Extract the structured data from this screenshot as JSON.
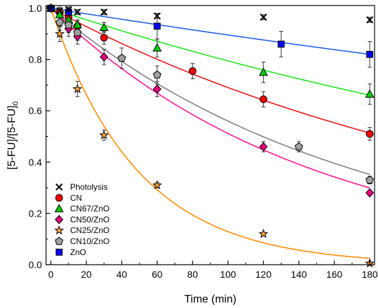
{
  "chart_data": {
    "type": "scatter",
    "xlabel": "Time (min)",
    "ylabel": {
      "main": "[5-FU]/[5-FU]",
      "sub": "0"
    },
    "xlim": [
      0,
      180
    ],
    "ylim": [
      0,
      1.0
    ],
    "xticks": [
      0,
      20,
      40,
      60,
      80,
      100,
      120,
      140,
      160,
      180
    ],
    "yticks": [
      0.0,
      0.2,
      0.4,
      0.6,
      0.8,
      1.0
    ],
    "x_tick_labels": [
      "0",
      "20",
      "40",
      "60",
      "80",
      "100",
      "120",
      "140",
      "160",
      "180"
    ],
    "y_tick_labels": [
      "0.0",
      "0.2",
      "0.4",
      "0.6",
      "0.8",
      "1.0"
    ],
    "grid": false,
    "legend_position": "bottom-left",
    "series": [
      {
        "name": "Photolysis",
        "marker": "cross",
        "color": "#000000",
        "fit": null,
        "points": [
          {
            "x": 0,
            "y": 1.0,
            "err": 0.01
          },
          {
            "x": 5,
            "y": 0.99,
            "err": 0.01
          },
          {
            "x": 10,
            "y": 0.995,
            "err": 0.01
          },
          {
            "x": 15,
            "y": 0.985,
            "err": 0.01
          },
          {
            "x": 30,
            "y": 0.985,
            "err": 0.01
          },
          {
            "x": 60,
            "y": 0.97,
            "err": 0.01
          },
          {
            "x": 120,
            "y": 0.965,
            "err": 0.01
          },
          {
            "x": 180,
            "y": 0.955,
            "err": 0.01
          }
        ]
      },
      {
        "name": "CN",
        "marker": "circle",
        "color": "#ff0000",
        "fit": {
          "color": "#e8141c",
          "k": 0.0037
        },
        "points": [
          {
            "x": 0,
            "y": 1.0,
            "err": 0.01
          },
          {
            "x": 5,
            "y": 0.985,
            "err": 0.02
          },
          {
            "x": 10,
            "y": 0.965,
            "err": 0.02
          },
          {
            "x": 15,
            "y": 0.93,
            "err": 0.02
          },
          {
            "x": 30,
            "y": 0.885,
            "err": 0.025
          },
          {
            "x": 80,
            "y": 0.755,
            "err": 0.03
          },
          {
            "x": 120,
            "y": 0.645,
            "err": 0.03
          },
          {
            "x": 180,
            "y": 0.51,
            "err": 0.025
          }
        ]
      },
      {
        "name": "CN67/ZnO",
        "marker": "triangle",
        "color": "#00cc00",
        "fit": {
          "color": "#1ee61e",
          "k": 0.0023
        },
        "points": [
          {
            "x": 0,
            "y": 1.0,
            "err": 0.01
          },
          {
            "x": 5,
            "y": 0.975,
            "err": 0.02
          },
          {
            "x": 10,
            "y": 0.955,
            "err": 0.02
          },
          {
            "x": 15,
            "y": 0.935,
            "err": 0.02
          },
          {
            "x": 30,
            "y": 0.925,
            "err": 0.02
          },
          {
            "x": 60,
            "y": 0.845,
            "err": 0.035
          },
          {
            "x": 120,
            "y": 0.75,
            "err": 0.04
          },
          {
            "x": 180,
            "y": 0.665,
            "err": 0.04
          }
        ]
      },
      {
        "name": "CN50/ZnO",
        "marker": "diamond",
        "color": "#e6007e",
        "fit": {
          "color": "#ff1493",
          "k": 0.0067
        },
        "points": [
          {
            "x": 0,
            "y": 1.0,
            "err": 0.01
          },
          {
            "x": 5,
            "y": 0.945,
            "err": 0.02
          },
          {
            "x": 10,
            "y": 0.92,
            "err": 0.03
          },
          {
            "x": 15,
            "y": 0.89,
            "err": 0.03
          },
          {
            "x": 30,
            "y": 0.81,
            "err": 0.03
          },
          {
            "x": 60,
            "y": 0.685,
            "err": 0.03
          },
          {
            "x": 120,
            "y": 0.46,
            "err": 0.02
          },
          {
            "x": 180,
            "y": 0.28,
            "err": 0.01
          }
        ]
      },
      {
        "name": "CN25/ZnO",
        "marker": "star",
        "color": "#ffa040",
        "fit": {
          "color": "#ff8c00",
          "k": 0.0205
        },
        "points": [
          {
            "x": 0,
            "y": 1.0,
            "err": 0.01
          },
          {
            "x": 5,
            "y": 0.9,
            "err": 0.03
          },
          {
            "x": 15,
            "y": 0.685,
            "err": 0.03
          },
          {
            "x": 30,
            "y": 0.505,
            "err": 0.02
          },
          {
            "x": 60,
            "y": 0.31,
            "err": 0.01
          },
          {
            "x": 120,
            "y": 0.12,
            "err": 0.005
          },
          {
            "x": 180,
            "y": 0.005,
            "err": 0.005
          }
        ]
      },
      {
        "name": "CN10/ZnO",
        "marker": "pentagon",
        "color": "#a0a0a0",
        "fit": {
          "color": "#808080",
          "k": 0.0058
        },
        "points": [
          {
            "x": 0,
            "y": 1.0,
            "err": 0.01
          },
          {
            "x": 5,
            "y": 0.945,
            "err": 0.03
          },
          {
            "x": 10,
            "y": 0.935,
            "err": 0.03
          },
          {
            "x": 15,
            "y": 0.905,
            "err": 0.03
          },
          {
            "x": 40,
            "y": 0.805,
            "err": 0.04
          },
          {
            "x": 60,
            "y": 0.74,
            "err": 0.035
          },
          {
            "x": 140,
            "y": 0.46,
            "err": 0.02
          },
          {
            "x": 180,
            "y": 0.33,
            "err": 0.015
          }
        ]
      },
      {
        "name": "ZnO",
        "marker": "square",
        "color": "#0000ff",
        "fit": {
          "color": "#2060e0",
          "k": 0.0011
        },
        "points": [
          {
            "x": 0,
            "y": 1.0,
            "err": 0.01
          },
          {
            "x": 10,
            "y": 0.985,
            "err": 0.02
          },
          {
            "x": 60,
            "y": 0.93,
            "err": 0.05
          },
          {
            "x": 130,
            "y": 0.86,
            "err": 0.05
          },
          {
            "x": 180,
            "y": 0.82,
            "err": 0.05
          }
        ]
      }
    ]
  }
}
